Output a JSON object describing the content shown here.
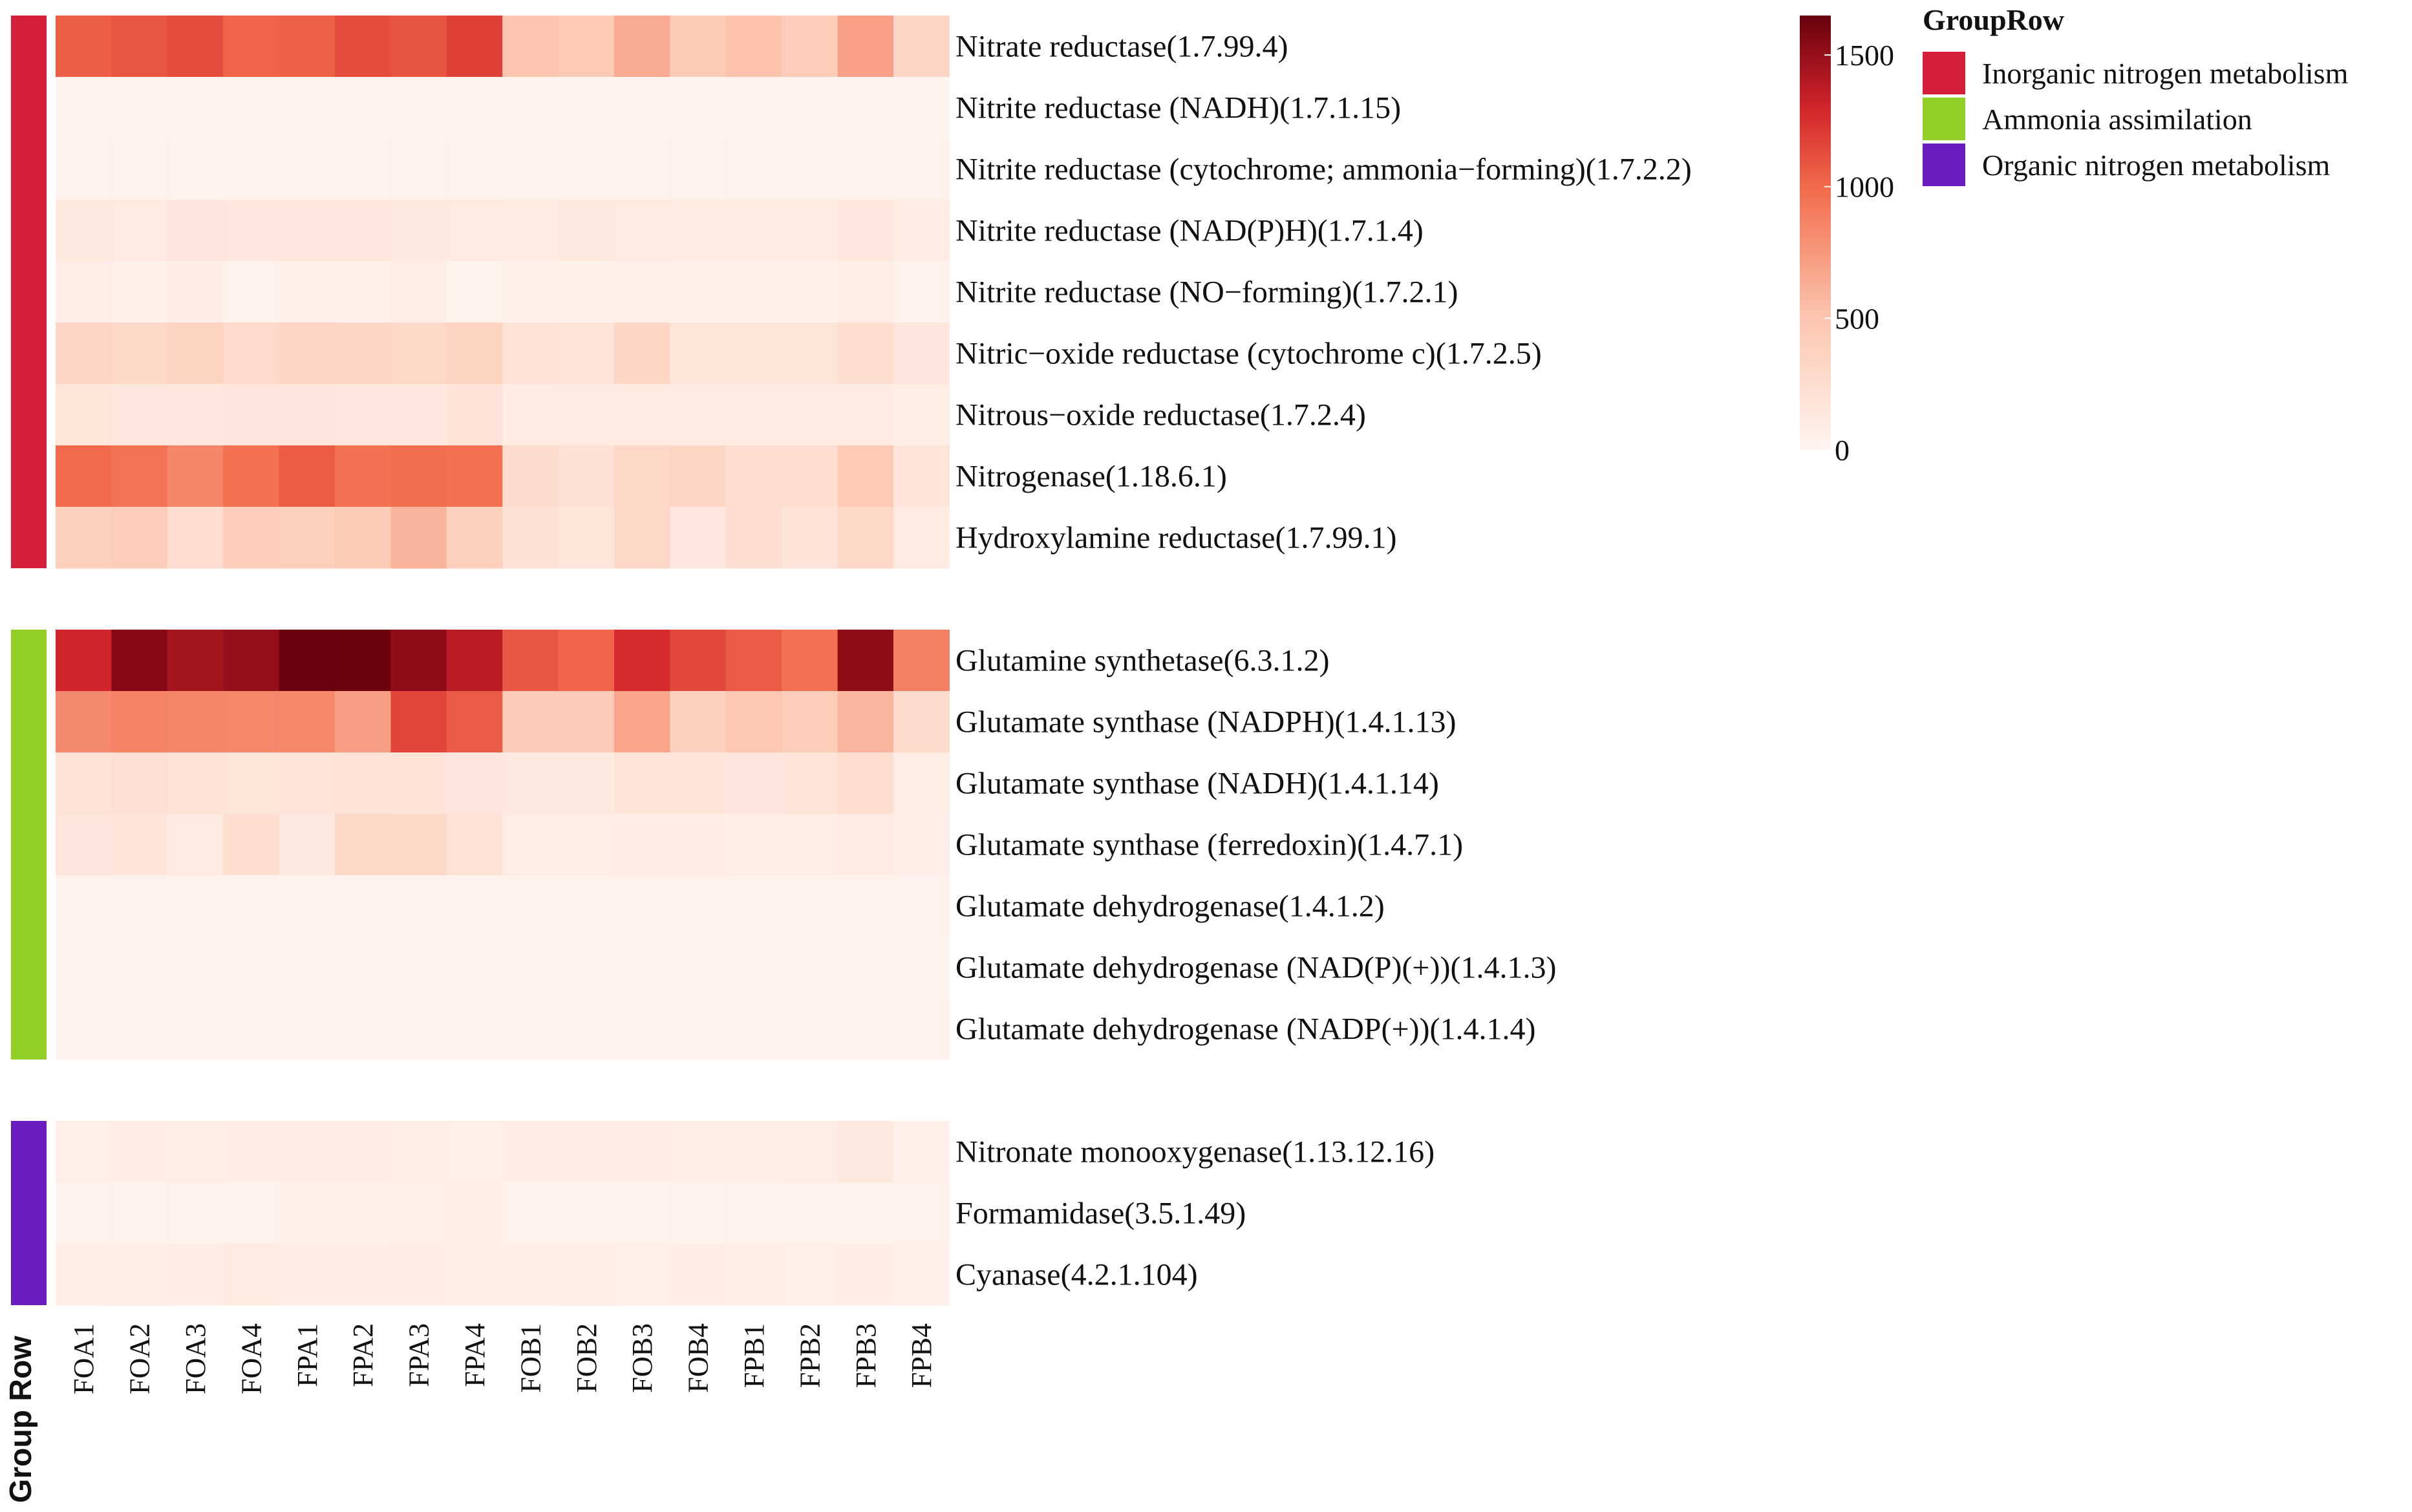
{
  "chart_data": {
    "type": "heatmap",
    "side_annotation_title": "Group Row",
    "columns": [
      "FOA1",
      "FOA2",
      "FOA3",
      "FOA4",
      "FPA1",
      "FPA2",
      "FPA3",
      "FPA4",
      "FOB1",
      "FOB2",
      "FOB3",
      "FOB4",
      "FPB1",
      "FPB2",
      "FPB3",
      "FPB4"
    ],
    "groups": [
      {
        "name": "Inorganic nitrogen metabolism",
        "color": "#d6203a",
        "rows": [
          {
            "label": "Nitrate reductase(1.7.99.4)",
            "values": [
              1050,
              1080,
              1130,
              1020,
              1040,
              1120,
              1090,
              1180,
              500,
              460,
              650,
              450,
              520,
              420,
              700,
              340
            ]
          },
          {
            "label": "Nitrite reductase (NADH)(1.7.1.15)",
            "values": [
              20,
              20,
              20,
              20,
              20,
              20,
              20,
              20,
              20,
              20,
              20,
              20,
              20,
              20,
              20,
              20
            ]
          },
          {
            "label": "Nitrite reductase (cytochrome; ammonia−forming)(1.7.2.2)",
            "values": [
              40,
              40,
              40,
              40,
              40,
              40,
              40,
              40,
              40,
              40,
              40,
              40,
              40,
              40,
              40,
              40
            ]
          },
          {
            "label": "Nitrite reductase (NAD(P)H)(1.7.1.4)",
            "values": [
              130,
              120,
              160,
              140,
              150,
              140,
              130,
              120,
              110,
              130,
              120,
              110,
              110,
              100,
              140,
              80
            ]
          },
          {
            "label": "Nitrite reductase (NO−forming)(1.7.2.1)",
            "values": [
              70,
              50,
              80,
              40,
              60,
              50,
              90,
              40,
              50,
              50,
              60,
              50,
              50,
              50,
              70,
              40
            ]
          },
          {
            "label": "Nitric−oxide reductase (cytochrome c)(1.7.2.5)",
            "values": [
              340,
              300,
              360,
              290,
              340,
              330,
              320,
              360,
              200,
              180,
              330,
              170,
              170,
              170,
              250,
              160
            ]
          },
          {
            "label": "Nitrous−oxide reductase(1.7.2.4)",
            "values": [
              170,
              150,
              140,
              160,
              160,
              150,
              140,
              190,
              110,
              110,
              120,
              100,
              100,
              100,
              110,
              90
            ]
          },
          {
            "label": "Nitrogenase(1.18.6.1)",
            "values": [
              1000,
              950,
              850,
              970,
              1060,
              960,
              980,
              970,
              270,
              210,
              320,
              340,
              240,
              240,
              460,
              180
            ]
          },
          {
            "label": "Hydroxylamine reductase(1.7.99.1)",
            "values": [
              400,
              430,
              260,
              410,
              390,
              450,
              600,
              400,
              210,
              170,
              320,
              150,
              240,
              190,
              320,
              120
            ]
          }
        ]
      },
      {
        "name": "Ammonia assimilation",
        "color": "#93d026",
        "rows": [
          {
            "label": "Glutamine synthetase(6.3.1.2)",
            "values": [
              1300,
              1550,
              1450,
              1500,
              1640,
              1630,
              1520,
              1380,
              1080,
              1020,
              1270,
              1150,
              1070,
              960,
              1520,
              880
            ]
          },
          {
            "label": "Glutamate synthase (NADPH)(1.4.1.13)",
            "values": [
              830,
              870,
              850,
              840,
              840,
              720,
              1160,
              1070,
              440,
              440,
              680,
              380,
              480,
              420,
              590,
              270
            ]
          },
          {
            "label": "Glutamate synthase (NADH)(1.4.1.14)",
            "values": [
              200,
              230,
              200,
              170,
              180,
              200,
              190,
              160,
              130,
              130,
              180,
              180,
              160,
              180,
              240,
              90
            ]
          },
          {
            "label": "Glutamate synthase (ferredoxin)(1.4.7.1)",
            "values": [
              160,
              180,
              120,
              250,
              130,
              300,
              300,
              200,
              90,
              90,
              80,
              80,
              90,
              90,
              110,
              70
            ]
          },
          {
            "label": "Glutamate dehydrogenase(1.4.1.2)",
            "values": [
              30,
              30,
              30,
              30,
              30,
              30,
              30,
              30,
              30,
              30,
              30,
              30,
              30,
              30,
              30,
              30
            ]
          },
          {
            "label": "Glutamate dehydrogenase (NAD(P)(+))(1.4.1.3)",
            "values": [
              20,
              20,
              20,
              20,
              20,
              20,
              20,
              20,
              20,
              20,
              20,
              20,
              20,
              20,
              20,
              20
            ]
          },
          {
            "label": "Glutamate dehydrogenase (NADP(+))(1.4.1.4)",
            "values": [
              30,
              30,
              30,
              30,
              30,
              30,
              30,
              30,
              30,
              30,
              30,
              30,
              30,
              30,
              30,
              30
            ]
          }
        ]
      },
      {
        "name": "Organic nitrogen metabolism",
        "color": "#6a1cbe",
        "rows": [
          {
            "label": "Nitronate monooxygenase(1.13.12.16)",
            "values": [
              60,
              80,
              90,
              80,
              80,
              80,
              70,
              60,
              80,
              80,
              80,
              70,
              70,
              90,
              130,
              50
            ]
          },
          {
            "label": "Formamidase(3.5.1.49)",
            "values": [
              40,
              40,
              40,
              40,
              50,
              50,
              60,
              70,
              40,
              40,
              40,
              40,
              40,
              40,
              40,
              30
            ]
          },
          {
            "label": "Cyanase(4.2.1.104)",
            "values": [
              70,
              90,
              80,
              100,
              80,
              80,
              80,
              70,
              70,
              90,
              60,
              80,
              70,
              60,
              80,
              50
            ]
          }
        ]
      }
    ],
    "colorbar": {
      "range": [
        0,
        1650
      ],
      "ticks": [
        {
          "value": 0,
          "label": "0"
        },
        {
          "value": 500,
          "label": "500"
        },
        {
          "value": 1000,
          "label": "1000"
        },
        {
          "value": 1500,
          "label": "1500"
        }
      ],
      "stops": [
        {
          "value": 0,
          "color": "#fff5f0"
        },
        {
          "value": 500,
          "color": "#fcc6b0"
        },
        {
          "value": 1000,
          "color": "#f26a4b"
        },
        {
          "value": 1300,
          "color": "#d2242b"
        },
        {
          "value": 1650,
          "color": "#67000d"
        }
      ]
    },
    "legend": {
      "title": "GroupRow",
      "placement": "right"
    }
  }
}
